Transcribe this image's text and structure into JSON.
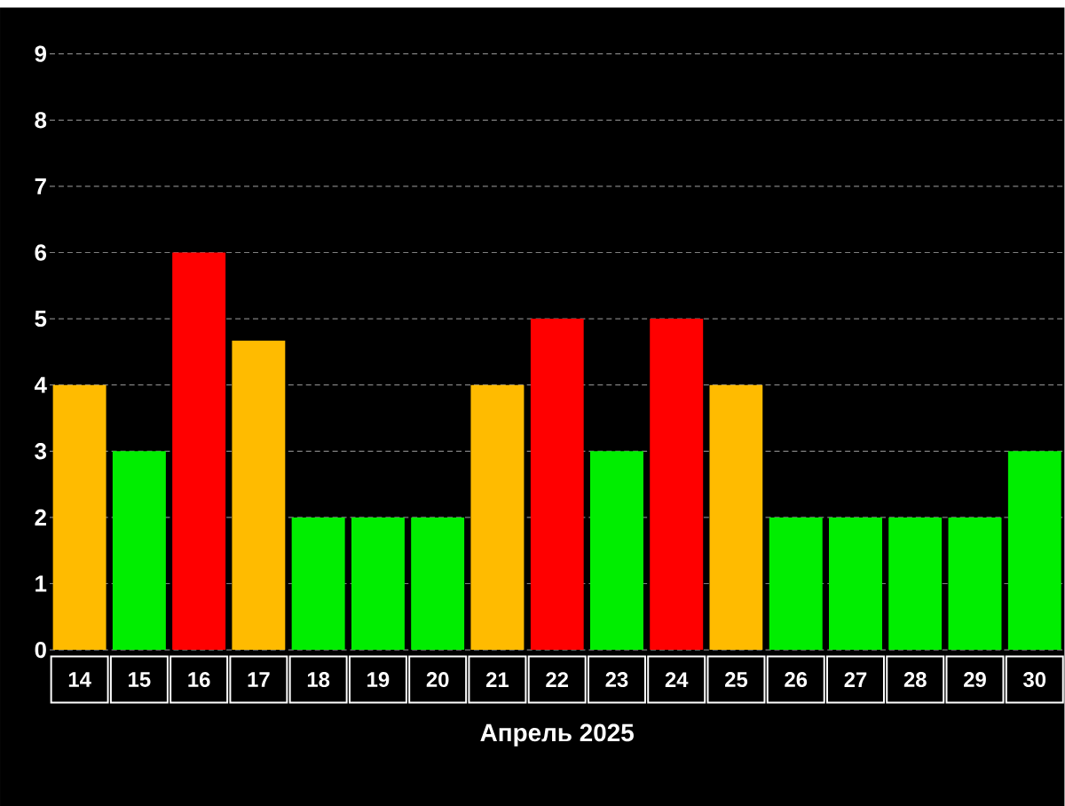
{
  "chart_data": {
    "type": "bar",
    "xlabel": "Апрель 2025",
    "categories": [
      "14",
      "15",
      "16",
      "17",
      "18",
      "19",
      "20",
      "21",
      "22",
      "23",
      "24",
      "25",
      "26",
      "27",
      "28",
      "29",
      "30"
    ],
    "values": [
      4,
      3,
      6,
      4.67,
      2,
      2,
      2,
      4,
      5,
      3,
      5,
      4,
      2,
      2,
      2,
      2,
      3
    ],
    "colors": [
      "#ffbb00",
      "#00ee00",
      "#ff0000",
      "#ffbb00",
      "#00ee00",
      "#00ee00",
      "#00ee00",
      "#ffbb00",
      "#ff0000",
      "#00ee00",
      "#ff0000",
      "#ffbb00",
      "#00ee00",
      "#00ee00",
      "#00ee00",
      "#00ee00",
      "#00ee00"
    ],
    "ylim": [
      0,
      9.7
    ],
    "yticks": [
      0,
      1,
      2,
      3,
      4,
      5,
      6,
      7,
      8,
      9
    ],
    "grid": "y"
  }
}
